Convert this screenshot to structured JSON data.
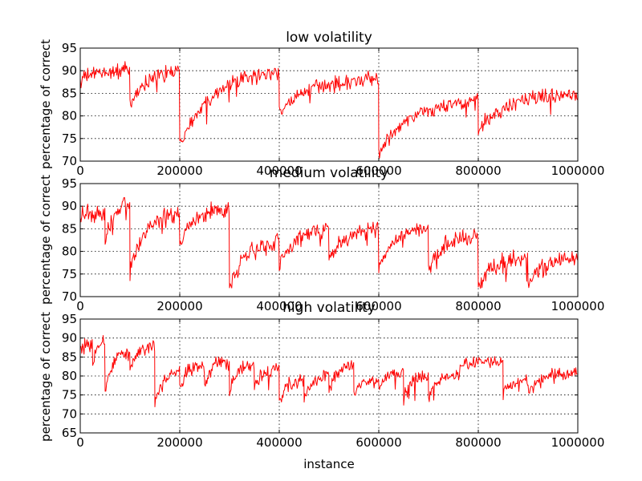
{
  "chart_data": [
    {
      "type": "line",
      "title": "low volatility",
      "xlabel": "",
      "ylabel": "percentage of correct",
      "xlim": [
        0,
        1000000
      ],
      "ylim": [
        70,
        95
      ],
      "xticks": [
        0,
        200000,
        400000,
        600000,
        800000,
        1000000
      ],
      "xtick_labels": [
        "0",
        "200000",
        "400000",
        "600000",
        "800000",
        "1000000"
      ],
      "yticks": [
        70,
        75,
        80,
        85,
        90,
        95
      ],
      "ytick_labels": [
        "70",
        "75",
        "80",
        "85",
        "90",
        "95"
      ],
      "grid": true,
      "color": "#ff0000",
      "noise": 1.6,
      "segments": [
        {
          "x0": 0,
          "x1": 100000,
          "y_start": 88,
          "y_end": 90
        },
        {
          "x0": 100000,
          "x1": 200000,
          "y_start": 82,
          "y_end": 90
        },
        {
          "x0": 200000,
          "x1": 400000,
          "y_start": 74,
          "y_end": 89.5
        },
        {
          "x0": 400000,
          "x1": 600000,
          "y_start": 81,
          "y_end": 88
        },
        {
          "x0": 600000,
          "x1": 800000,
          "y_start": 72,
          "y_end": 83
        },
        {
          "x0": 800000,
          "x1": 1000000,
          "y_start": 77,
          "y_end": 85
        }
      ]
    },
    {
      "type": "line",
      "title": "medium volatility",
      "xlabel": "",
      "ylabel": "percentage of correct",
      "xlim": [
        0,
        1000000
      ],
      "ylim": [
        70,
        95
      ],
      "xticks": [
        0,
        200000,
        400000,
        600000,
        800000,
        1000000
      ],
      "xtick_labels": [
        "0",
        "200000",
        "400000",
        "600000",
        "800000",
        "1000000"
      ],
      "yticks": [
        70,
        75,
        80,
        85,
        90,
        95
      ],
      "ytick_labels": [
        "70",
        "75",
        "80",
        "85",
        "90",
        "95"
      ],
      "grid": true,
      "color": "#ff0000",
      "noise": 1.8,
      "segments": [
        {
          "x0": 0,
          "x1": 50000,
          "y_start": 88,
          "y_end": 88
        },
        {
          "x0": 50000,
          "x1": 100000,
          "y_start": 82,
          "y_end": 90.5
        },
        {
          "x0": 100000,
          "x1": 200000,
          "y_start": 76,
          "y_end": 88.5
        },
        {
          "x0": 200000,
          "x1": 300000,
          "y_start": 82,
          "y_end": 89.5
        },
        {
          "x0": 300000,
          "x1": 400000,
          "y_start": 72,
          "y_end": 82
        },
        {
          "x0": 400000,
          "x1": 500000,
          "y_start": 77,
          "y_end": 85
        },
        {
          "x0": 500000,
          "x1": 600000,
          "y_start": 78,
          "y_end": 85
        },
        {
          "x0": 600000,
          "x1": 700000,
          "y_start": 77,
          "y_end": 85
        },
        {
          "x0": 700000,
          "x1": 800000,
          "y_start": 76,
          "y_end": 83.5
        },
        {
          "x0": 800000,
          "x1": 900000,
          "y_start": 72.5,
          "y_end": 78.5
        },
        {
          "x0": 900000,
          "x1": 1000000,
          "y_start": 73,
          "y_end": 78.5
        }
      ]
    },
    {
      "type": "line",
      "title": "high volatility",
      "xlabel": "instance",
      "ylabel": "percentage of correct",
      "xlim": [
        0,
        1000000
      ],
      "ylim": [
        65,
        95
      ],
      "xticks": [
        0,
        200000,
        400000,
        600000,
        800000,
        1000000
      ],
      "xtick_labels": [
        "0",
        "200000",
        "400000",
        "600000",
        "800000",
        "1000000"
      ],
      "yticks": [
        65,
        70,
        75,
        80,
        85,
        90,
        95
      ],
      "ytick_labels": [
        "65",
        "70",
        "75",
        "80",
        "85",
        "90",
        "95"
      ],
      "grid": true,
      "color": "#ff0000",
      "noise": 1.7,
      "segments": [
        {
          "x0": 0,
          "x1": 25000,
          "y_start": 87,
          "y_end": 88
        },
        {
          "x0": 25000,
          "x1": 50000,
          "y_start": 82,
          "y_end": 89
        },
        {
          "x0": 50000,
          "x1": 100000,
          "y_start": 76,
          "y_end": 87
        },
        {
          "x0": 100000,
          "x1": 150000,
          "y_start": 82,
          "y_end": 88
        },
        {
          "x0": 150000,
          "x1": 200000,
          "y_start": 72,
          "y_end": 81
        },
        {
          "x0": 200000,
          "x1": 250000,
          "y_start": 77,
          "y_end": 83
        },
        {
          "x0": 250000,
          "x1": 300000,
          "y_start": 78,
          "y_end": 84
        },
        {
          "x0": 300000,
          "x1": 350000,
          "y_start": 76,
          "y_end": 83
        },
        {
          "x0": 350000,
          "x1": 400000,
          "y_start": 77,
          "y_end": 82
        },
        {
          "x0": 400000,
          "x1": 450000,
          "y_start": 73,
          "y_end": 79
        },
        {
          "x0": 450000,
          "x1": 500000,
          "y_start": 73,
          "y_end": 80
        },
        {
          "x0": 500000,
          "x1": 550000,
          "y_start": 76,
          "y_end": 83
        },
        {
          "x0": 550000,
          "x1": 600000,
          "y_start": 75,
          "y_end": 79
        },
        {
          "x0": 600000,
          "x1": 650000,
          "y_start": 76,
          "y_end": 81
        },
        {
          "x0": 650000,
          "x1": 700000,
          "y_start": 74,
          "y_end": 80
        },
        {
          "x0": 700000,
          "x1": 750000,
          "y_start": 74,
          "y_end": 80
        },
        {
          "x0": 750000,
          "x1": 800000,
          "y_start": 79,
          "y_end": 84
        },
        {
          "x0": 800000,
          "x1": 850000,
          "y_start": 83,
          "y_end": 84
        },
        {
          "x0": 850000,
          "x1": 900000,
          "y_start": 75,
          "y_end": 79
        },
        {
          "x0": 900000,
          "x1": 1000000,
          "y_start": 76,
          "y_end": 81
        }
      ]
    }
  ]
}
